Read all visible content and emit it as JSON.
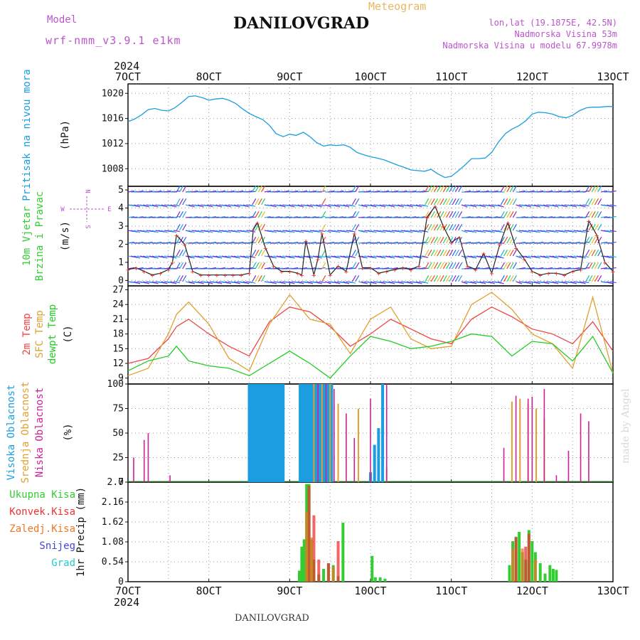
{
  "header": {
    "model_label": "Model",
    "model_name": "wrf-nmm_v3.9.1 e1km",
    "title": "DANILOVGRAD",
    "subtitle": "Meteogram",
    "loc_line": "lon,lat (19.1875E, 42.5N)",
    "elev_line": "Nadmorska Visina 53m",
    "elev_model_line": "Nadmorska Visina u modelu 67.9978m",
    "footer_title": "DANILOVGRAD",
    "watermark": "made by Angel"
  },
  "axis": {
    "top_year": "2024",
    "bottom_year": "2024",
    "date_ticks": [
      "7OCT",
      "8OCT",
      "9OCT",
      "10OCT",
      "11OCT",
      "12OCT",
      "13OCT"
    ]
  },
  "colors": {
    "pressure": "#1a9ee0",
    "t2m": "#ee4444",
    "tsfc": "#e0a030",
    "dewpt": "#22cc22",
    "high_cloud": "#1a9ee0",
    "mid_cloud": "#e0a030",
    "low_cloud": "#cc2299",
    "total_precip": "#33cc33",
    "conv_precip": "#ee3333",
    "strat_precip": "#ee7722",
    "snow": "#4444dd",
    "hail": "#22cccc",
    "purple_text": "#bb55cc"
  },
  "compass": {
    "n": "N",
    "s": "S",
    "e": "E",
    "w": "W"
  },
  "chart_data": [
    {
      "type": "line",
      "panel": "pressure",
      "ylabel": "Pritisak na nivou mora",
      "unit": "(hPa)",
      "yticks": [
        "1008",
        "1012",
        "1016",
        "1020"
      ],
      "ylim": [
        1005.2,
        1021.5
      ],
      "series": [
        {
          "x": [
            0,
            0.08,
            0.17,
            0.25,
            0.33,
            0.42,
            0.5,
            0.58,
            0.67,
            0.75,
            0.83,
            0.92,
            1.0,
            1.08,
            1.17,
            1.25,
            1.33,
            1.42,
            1.5,
            1.58,
            1.67,
            1.75,
            1.83,
            1.92,
            2.0,
            2.08,
            2.17,
            2.25,
            2.33,
            2.42,
            2.5,
            2.58,
            2.67,
            2.75,
            2.83,
            2.92,
            3.0,
            3.08,
            3.17,
            3.25,
            3.33,
            3.42,
            3.5,
            3.58,
            3.67,
            3.75,
            3.83,
            3.92,
            4.0,
            4.08,
            4.17,
            4.25,
            4.33,
            4.42,
            4.5,
            4.58,
            4.67,
            4.75,
            4.83,
            4.92,
            5.0,
            5.08,
            5.17,
            5.25,
            5.33,
            5.42,
            5.5,
            5.58,
            5.67,
            5.75,
            5.83,
            5.92,
            6.0
          ],
          "values": [
            1015.5,
            1015.9,
            1016.6,
            1017.4,
            1017.6,
            1017.3,
            1017.2,
            1017.7,
            1018.6,
            1019.5,
            1019.6,
            1019.3,
            1018.9,
            1019.1,
            1019.2,
            1018.9,
            1018.4,
            1017.5,
            1016.8,
            1016.3,
            1015.8,
            1014.9,
            1013.6,
            1013.1,
            1013.5,
            1013.3,
            1013.8,
            1013.1,
            1012.2,
            1011.6,
            1011.8,
            1011.7,
            1011.8,
            1011.4,
            1010.6,
            1010.2,
            1009.9,
            1009.7,
            1009.4,
            1009.0,
            1008.6,
            1008.2,
            1007.8,
            1007.7,
            1007.6,
            1007.9,
            1007.2,
            1006.6,
            1006.8,
            1007.6,
            1008.6,
            1009.6,
            1009.6,
            1009.7,
            1010.6,
            1012.2,
            1013.6,
            1014.3,
            1014.8,
            1015.6,
            1016.7,
            1017.0,
            1016.9,
            1016.7,
            1016.3,
            1016.1,
            1016.5,
            1017.2,
            1017.7,
            1017.8,
            1017.8,
            1017.9,
            1017.9
          ]
        }
      ]
    },
    {
      "type": "line",
      "panel": "wind",
      "ylabel": "10m Vjetar",
      "ylabel2": "Brzina i Pravac",
      "unit": "(m/s)",
      "yticks": [
        "0",
        "1",
        "2",
        "3",
        "4",
        "5"
      ],
      "ylim": [
        -0.3,
        5.2
      ],
      "series": [
        {
          "name": "speed",
          "x": [
            0,
            0.1,
            0.2,
            0.3,
            0.4,
            0.5,
            0.55,
            0.6,
            0.7,
            0.8,
            0.9,
            1.0,
            1.1,
            1.2,
            1.3,
            1.4,
            1.5,
            1.55,
            1.6,
            1.7,
            1.8,
            1.9,
            2.0,
            2.1,
            2.15,
            2.2,
            2.3,
            2.35,
            2.4,
            2.5,
            2.6,
            2.7,
            2.8,
            2.9,
            3.0,
            3.1,
            3.2,
            3.3,
            3.4,
            3.5,
            3.6,
            3.7,
            3.8,
            3.9,
            4.0,
            4.1,
            4.2,
            4.3,
            4.4,
            4.5,
            4.6,
            4.7,
            4.8,
            4.9,
            5.0,
            5.1,
            5.2,
            5.3,
            5.4,
            5.5,
            5.6,
            5.7,
            5.8,
            5.9,
            6.0
          ],
          "values": [
            0.6,
            0.7,
            0.5,
            0.3,
            0.4,
            0.6,
            1.0,
            2.5,
            2.0,
            0.5,
            0.3,
            0.3,
            0.3,
            0.3,
            0.3,
            0.3,
            0.4,
            2.8,
            3.2,
            1.8,
            0.8,
            0.5,
            0.5,
            0.4,
            0.3,
            2.2,
            0.3,
            1.2,
            2.6,
            0.3,
            0.8,
            0.5,
            2.6,
            0.7,
            0.7,
            0.4,
            0.5,
            0.6,
            0.7,
            0.6,
            0.8,
            3.5,
            4.1,
            3.0,
            2.1,
            2.4,
            0.8,
            0.6,
            1.5,
            0.4,
            2.0,
            3.2,
            1.8,
            1.2,
            0.5,
            0.3,
            0.4,
            0.4,
            0.3,
            0.5,
            0.6,
            3.3,
            2.5,
            1.0,
            0.5
          ]
        }
      ]
    },
    {
      "type": "line",
      "panel": "temperature",
      "ylabel": "2m Temp",
      "ylabel2": "SFC Temp",
      "ylabel3": "dewpt Temp",
      "unit": "(C)",
      "yticks": [
        "9",
        "12",
        "15",
        "18",
        "21",
        "24",
        "27"
      ],
      "ylim": [
        7.8,
        27.8
      ],
      "series": [
        {
          "name": "2m Temp",
          "x": [
            0,
            0.25,
            0.5,
            0.6,
            0.75,
            1.0,
            1.25,
            1.5,
            1.75,
            2.0,
            2.25,
            2.5,
            2.75,
            3.0,
            3.25,
            3.5,
            3.75,
            4.0,
            4.25,
            4.5,
            4.75,
            5.0,
            5.25,
            5.5,
            5.75,
            6.0
          ],
          "values": [
            12,
            13,
            17,
            19.5,
            21,
            18,
            15.5,
            13.5,
            20.5,
            23.5,
            22.5,
            19.5,
            15.5,
            18,
            21,
            19,
            17,
            16,
            21,
            23.5,
            21.5,
            19,
            18,
            16,
            20.5,
            14.5
          ]
        },
        {
          "name": "SFC Temp",
          "x": [
            0,
            0.25,
            0.5,
            0.6,
            0.75,
            1.0,
            1.25,
            1.5,
            1.75,
            2.0,
            2.25,
            2.5,
            2.75,
            3.0,
            3.25,
            3.5,
            3.75,
            4.0,
            4.25,
            4.5,
            4.75,
            5.0,
            5.25,
            5.5,
            5.75,
            6.0
          ],
          "values": [
            9.5,
            11,
            18,
            22,
            24.5,
            20,
            13,
            10.5,
            20,
            26,
            21,
            20,
            14,
            21,
            23.5,
            17,
            15,
            15.5,
            24,
            26.5,
            23,
            18,
            16,
            11,
            25.5,
            10
          ]
        },
        {
          "name": "dewpt Temp",
          "x": [
            0,
            0.25,
            0.5,
            0.6,
            0.75,
            1.0,
            1.25,
            1.5,
            1.75,
            2.0,
            2.25,
            2.5,
            2.75,
            3.0,
            3.25,
            3.5,
            3.75,
            4.0,
            4.25,
            4.5,
            4.75,
            5.0,
            5.25,
            5.5,
            5.75,
            6.0
          ],
          "values": [
            10.5,
            12.5,
            13.5,
            15.5,
            12.5,
            11.5,
            11,
            9.5,
            12,
            14.5,
            12,
            9,
            13.5,
            17.5,
            16.5,
            15,
            15.5,
            16.5,
            18,
            17.5,
            13.5,
            16.5,
            16,
            12.5,
            17.5,
            10
          ]
        }
      ]
    },
    {
      "type": "bar",
      "panel": "cloud",
      "ylabel": "Visoka Oblacnost",
      "ylabel2": "Srednja Oblacnost",
      "ylabel3": "Niska Oblacnost",
      "unit": "(%)",
      "yticks": [
        "0",
        "25",
        "50",
        "75",
        "100"
      ],
      "ylim": [
        0,
        100
      ],
      "series": [
        {
          "name": "Visoka Oblacnost",
          "x": [
            1.5,
            1.53,
            1.56,
            1.59,
            1.62,
            1.65,
            1.68,
            1.71,
            1.74,
            1.77,
            1.8,
            1.83,
            1.86,
            1.89,
            1.92,
            2.13,
            2.16,
            2.19,
            2.22,
            2.25,
            2.28,
            2.31,
            2.34,
            2.37,
            2.4,
            2.43,
            2.46,
            2.49,
            2.52,
            3.0,
            3.05,
            3.1,
            3.15
          ],
          "values": [
            100,
            100,
            100,
            100,
            100,
            100,
            100,
            100,
            100,
            100,
            100,
            100,
            100,
            100,
            100,
            100,
            100,
            100,
            100,
            100,
            100,
            100,
            100,
            100,
            100,
            100,
            100,
            100,
            100,
            10,
            38,
            55,
            100
          ]
        },
        {
          "name": "Srednja Oblacnost",
          "x": [
            2.3,
            2.4,
            2.5,
            2.6,
            2.85,
            3.2,
            4.75,
            4.85,
            4.95,
            5.05,
            5.15
          ],
          "values": [
            100,
            100,
            100,
            80,
            75,
            15,
            82,
            85,
            80,
            75,
            65
          ]
        },
        {
          "name": "Niska Oblacnost",
          "x": [
            0.07,
            0.2,
            0.25,
            0.52,
            2.35,
            2.45,
            2.55,
            2.7,
            2.8,
            3.0,
            3.2,
            4.65,
            4.8,
            4.95,
            5.0,
            5.15,
            5.3,
            5.45,
            5.6,
            5.7
          ],
          "values": [
            25,
            43,
            50,
            7,
            100,
            100,
            95,
            70,
            45,
            85,
            100,
            35,
            88,
            85,
            87,
            95,
            7,
            32,
            70,
            62
          ]
        }
      ]
    },
    {
      "type": "bar",
      "panel": "precip",
      "ylabel": "1hr Precip",
      "unit": "(mm)",
      "legend": [
        "Ukupna Kisa",
        "Konvek.Kisa",
        "Zaledj.Kisa",
        "Snijeg",
        "Grad"
      ],
      "yticks": [
        "0",
        "0.54",
        "1.08",
        "1.62",
        "2.16",
        "2.7"
      ],
      "ylim": [
        0,
        2.7
      ],
      "series": [
        {
          "name": "Ukupna Kisa",
          "x": [
            2.12,
            2.15,
            2.18,
            2.21,
            2.24,
            2.27,
            2.3,
            2.36,
            2.42,
            2.48,
            2.54,
            2.6,
            2.66,
            3.02,
            3.06,
            3.12,
            3.18,
            4.72,
            4.76,
            4.8,
            4.84,
            4.88,
            4.92,
            4.96,
            5.0,
            5.04,
            5.1,
            5.16,
            5.22,
            5.26,
            5.3
          ],
          "values": [
            0.3,
            0.95,
            1.15,
            2.65,
            2.65,
            1.15,
            0.6,
            0.2,
            0.35,
            0.5,
            0.45,
            0.15,
            1.6,
            0.7,
            0.12,
            0.12,
            0.08,
            0.45,
            1.1,
            1.22,
            1.35,
            0.8,
            0.6,
            1.4,
            1.1,
            0.8,
            0.5,
            0.22,
            0.45,
            0.35,
            0.32
          ]
        },
        {
          "name": "Konvek.Kisa",
          "x": [
            2.24,
            2.3,
            2.36,
            2.48,
            2.6,
            4.8,
            4.92,
            4.96
          ],
          "values": [
            2.6,
            1.8,
            0.6,
            0.5,
            1.1,
            1.2,
            0.95,
            1.3
          ]
        },
        {
          "name": "Zaledj.Kisa",
          "x": [
            2.21,
            2.27,
            2.54,
            4.76,
            4.88,
            5.04
          ],
          "values": [
            1.9,
            1.2,
            0.4,
            0.9,
            0.9,
            0.6
          ]
        },
        {
          "name": "Snijeg",
          "x": [],
          "values": []
        },
        {
          "name": "Grad",
          "x": [],
          "values": []
        }
      ]
    }
  ]
}
